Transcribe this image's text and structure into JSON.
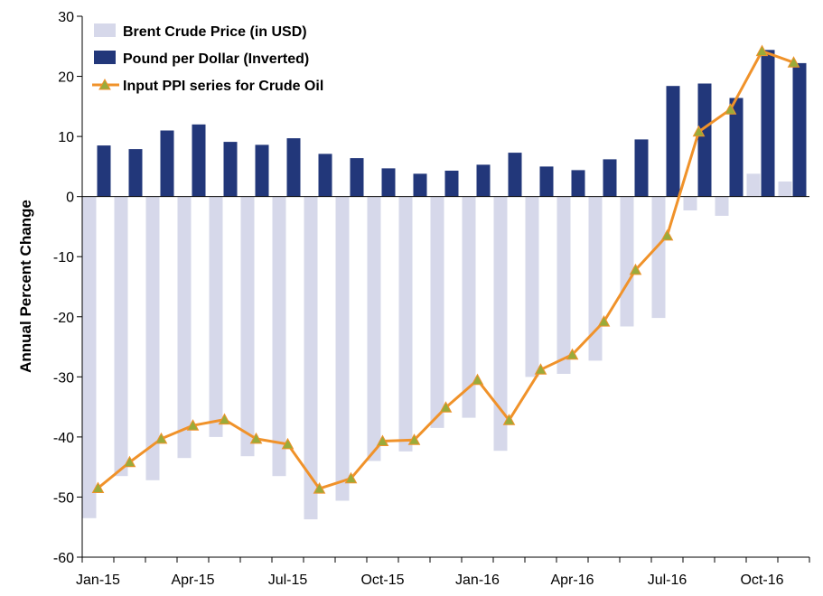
{
  "chart_data": {
    "type": "bar",
    "ylabel": "Annual Percent Change",
    "ylim": [
      -60,
      30
    ],
    "y_ticks": [
      "30",
      "20",
      "10",
      "0",
      "-10",
      "-20",
      "-30",
      "-40",
      "-50",
      "-60"
    ],
    "x_tick_labels": [
      {
        "index": 0,
        "label": "Jan-15"
      },
      {
        "index": 3,
        "label": "Apr-15"
      },
      {
        "index": 6,
        "label": "Jul-15"
      },
      {
        "index": 9,
        "label": "Oct-15"
      },
      {
        "index": 12,
        "label": "Jan-16"
      },
      {
        "index": 15,
        "label": "Apr-16"
      },
      {
        "index": 18,
        "label": "Jul-16"
      },
      {
        "index": 21,
        "label": "Oct-16"
      }
    ],
    "categories": [
      "Jan-15",
      "Feb-15",
      "Mar-15",
      "Apr-15",
      "May-15",
      "Jun-15",
      "Jul-15",
      "Aug-15",
      "Sep-15",
      "Oct-15",
      "Nov-15",
      "Dec-15",
      "Jan-16",
      "Feb-16",
      "Mar-16",
      "Apr-16",
      "May-16",
      "Jun-16",
      "Jul-16",
      "Aug-16",
      "Sep-16",
      "Oct-16",
      "Nov-16"
    ],
    "legend_position": "top-left",
    "series": [
      {
        "name": "Brent Crude Price (in USD)",
        "type": "bar",
        "color": "#d6d8ea",
        "values": [
          -53.5,
          -46.5,
          -47.2,
          -43.5,
          -40.0,
          -43.2,
          -46.5,
          -53.7,
          -50.6,
          -44.0,
          -42.4,
          -38.5,
          -36.8,
          -42.3,
          -30.0,
          -29.5,
          -27.3,
          -21.6,
          -20.2,
          -2.3,
          -3.2,
          3.8,
          2.5
        ]
      },
      {
        "name": "Pound per Dollar (Inverted)",
        "type": "bar",
        "color": "#22377a",
        "values": [
          8.5,
          7.9,
          11.0,
          12.0,
          9.1,
          8.6,
          9.7,
          7.1,
          6.4,
          4.7,
          3.8,
          4.3,
          5.3,
          7.3,
          5.0,
          4.4,
          6.2,
          9.5,
          18.4,
          18.8,
          16.4,
          24.4,
          22.2
        ]
      },
      {
        "name": "Input PPI series for Crude Oil",
        "type": "line",
        "color": "#f0922a",
        "marker_color": "#9aab3a",
        "values": [
          -48.5,
          -44.2,
          -40.3,
          -38.1,
          -37.1,
          -40.3,
          -41.2,
          -48.6,
          -46.9,
          -40.7,
          -40.5,
          -35.1,
          -30.5,
          -37.2,
          -28.8,
          -26.3,
          -20.8,
          -12.2,
          -6.5,
          10.8,
          14.5,
          24.2,
          22.3
        ]
      }
    ]
  }
}
